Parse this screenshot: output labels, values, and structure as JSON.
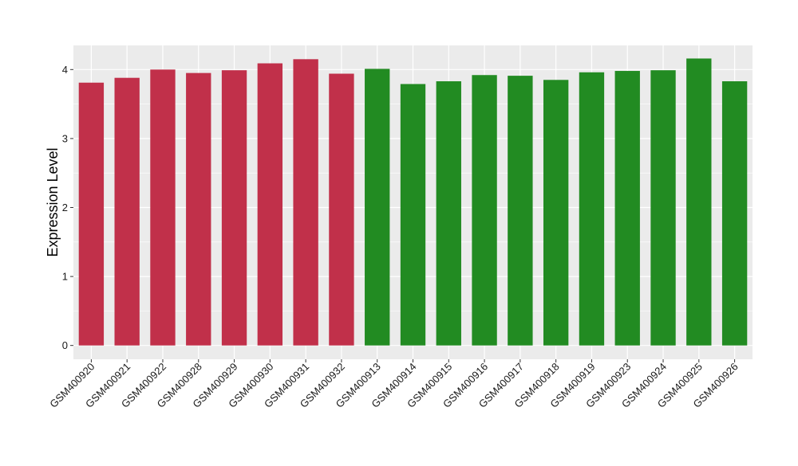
{
  "chart_data": {
    "type": "bar",
    "title": "",
    "xlabel": "",
    "ylabel": "Expression Level",
    "ylim": [
      -0.2,
      4.35
    ],
    "yticks": [
      0,
      1,
      2,
      3,
      4
    ],
    "grid": true,
    "legend": "none",
    "panel_background": "#ebebeb",
    "gridline_color": "#ffffff",
    "categories": [
      "GSM400920",
      "GSM400921",
      "GSM400922",
      "GSM400928",
      "GSM400929",
      "GSM400930",
      "GSM400931",
      "GSM400932",
      "GSM400913",
      "GSM400914",
      "GSM400915",
      "GSM400916",
      "GSM400917",
      "GSM400918",
      "GSM400919",
      "GSM400923",
      "GSM400924",
      "GSM400925",
      "GSM400926"
    ],
    "values": [
      3.81,
      3.88,
      4.0,
      3.95,
      3.99,
      4.09,
      4.15,
      3.94,
      4.01,
      3.79,
      3.83,
      3.92,
      3.91,
      3.85,
      3.96,
      3.98,
      3.99,
      4.16,
      3.83
    ],
    "colors": [
      "#c1304a",
      "#c1304a",
      "#c1304a",
      "#c1304a",
      "#c1304a",
      "#c1304a",
      "#c1304a",
      "#c1304a",
      "#228b22",
      "#228b22",
      "#228b22",
      "#228b22",
      "#228b22",
      "#228b22",
      "#228b22",
      "#228b22",
      "#228b22",
      "#228b22",
      "#228b22"
    ]
  }
}
